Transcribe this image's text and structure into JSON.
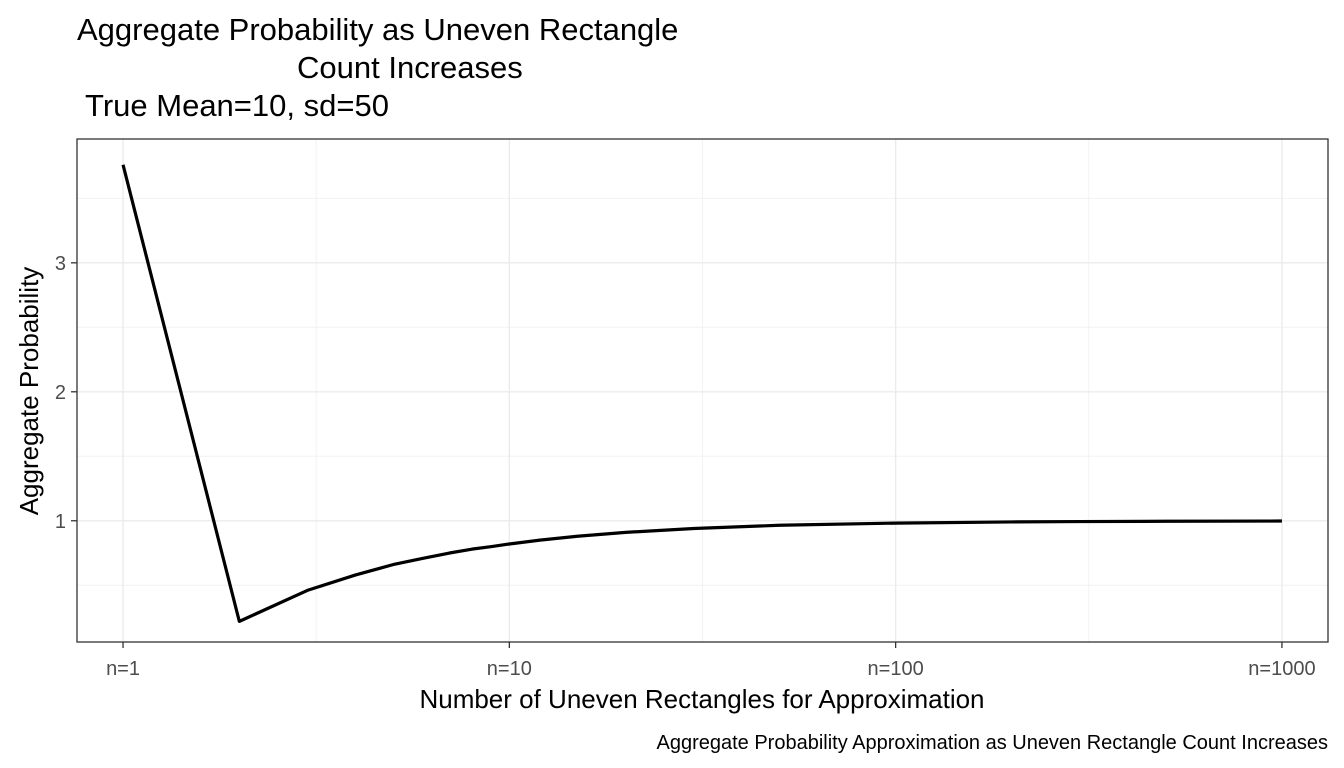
{
  "chart_data": {
    "type": "line",
    "title_lines": [
      "Aggregate Probability as Uneven Rectangle",
      "Count Increases",
      " True Mean=10, sd=50"
    ],
    "xlabel": "Number of Uneven Rectangles for Approximation",
    "ylabel": "Aggregate Probability",
    "caption": "Aggregate Probability Approximation as Uneven Rectangle Count Increases",
    "x_scale": "log10",
    "xlim": [
      0.76,
      1316
    ],
    "ylim": [
      0.06,
      3.96
    ],
    "x_ticks": [
      {
        "value": 1,
        "label": "n=1"
      },
      {
        "value": 10,
        "label": "n=10"
      },
      {
        "value": 100,
        "label": "n=100"
      },
      {
        "value": 1000,
        "label": "n=1000"
      }
    ],
    "y_ticks": [
      {
        "value": 1,
        "label": "1"
      },
      {
        "value": 2,
        "label": "2"
      },
      {
        "value": 3,
        "label": "3"
      }
    ],
    "x_minor_grid": [
      3.1623,
      31.623,
      316.23
    ],
    "y_minor_grid": [
      0.5,
      1.5,
      2.5,
      3.5
    ],
    "grid": true,
    "line_color": "#000000",
    "series": [
      {
        "x": [
          1,
          2,
          3,
          4,
          5,
          6,
          7,
          8,
          9,
          10,
          12,
          15,
          20,
          30,
          50,
          100,
          200,
          300,
          500,
          1000
        ],
        "values": [
          3.76,
          0.22,
          0.46,
          0.58,
          0.66,
          0.71,
          0.75,
          0.78,
          0.8,
          0.82,
          0.85,
          0.88,
          0.91,
          0.94,
          0.965,
          0.982,
          0.991,
          0.994,
          0.996,
          0.998
        ]
      }
    ]
  }
}
